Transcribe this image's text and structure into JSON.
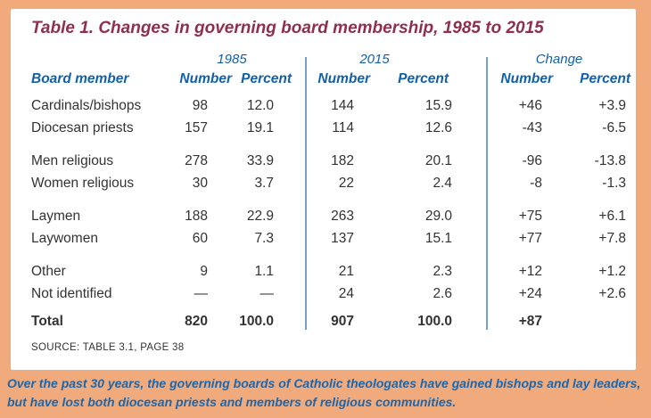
{
  "title": "Table 1. Changes in governing board membership, 1985 to 2015",
  "table": {
    "row_header": "Board member",
    "groups": [
      {
        "label": "1985",
        "columns": [
          "Number",
          "Percent"
        ]
      },
      {
        "label": "2015",
        "columns": [
          "Number",
          "Percent"
        ]
      },
      {
        "label": "Change",
        "columns": [
          "Number",
          "Percent"
        ]
      }
    ],
    "rows": [
      {
        "label": "Cardinals/bishops",
        "cells": [
          "98",
          "12.0",
          "144",
          "15.9",
          "+46",
          "+3.9"
        ],
        "group_start": false
      },
      {
        "label": "Diocesan priests",
        "cells": [
          "157",
          "19.1",
          "114",
          "12.6",
          "-43",
          "-6.5"
        ],
        "group_start": false
      },
      {
        "label": "Men religious",
        "cells": [
          "278",
          "33.9",
          "182",
          "20.1",
          "-96",
          "-13.8"
        ],
        "group_start": true
      },
      {
        "label": "Women religious",
        "cells": [
          "30",
          "3.7",
          "22",
          "2.4",
          "-8",
          "-1.3"
        ],
        "group_start": false
      },
      {
        "label": "Laymen",
        "cells": [
          "188",
          "22.9",
          "263",
          "29.0",
          "+75",
          "+6.1"
        ],
        "group_start": true
      },
      {
        "label": "Laywomen",
        "cells": [
          "60",
          "7.3",
          "137",
          "15.1",
          "+77",
          "+7.8"
        ],
        "group_start": false
      },
      {
        "label": "Other",
        "cells": [
          "9",
          "1.1",
          "21",
          "2.3",
          "+12",
          "+1.2"
        ],
        "group_start": true
      },
      {
        "label": "Not identified",
        "cells": [
          "—",
          "—",
          "24",
          "2.6",
          "+24",
          "+2.6"
        ],
        "group_start": false
      }
    ],
    "total": {
      "label": "Total",
      "cells": [
        "820",
        "100.0",
        "907",
        "100.0",
        "+87",
        ""
      ]
    }
  },
  "source": "SOURCE: TABLE 3.1, PAGE 38",
  "caption": {
    "line1": "Over the past 30 years, the governing boards of Catholic theologates have gained bishops and lay leaders,",
    "line2": "but have lost both diocesan priests and members of religious communities."
  },
  "colors": {
    "frame": "#f1aa7b",
    "panel": "#ffffff",
    "title": "#8e2f4e",
    "header": "#1460a8",
    "divider": "#73a0c9",
    "body_text": "#333333",
    "caption": "#1b67ae"
  }
}
